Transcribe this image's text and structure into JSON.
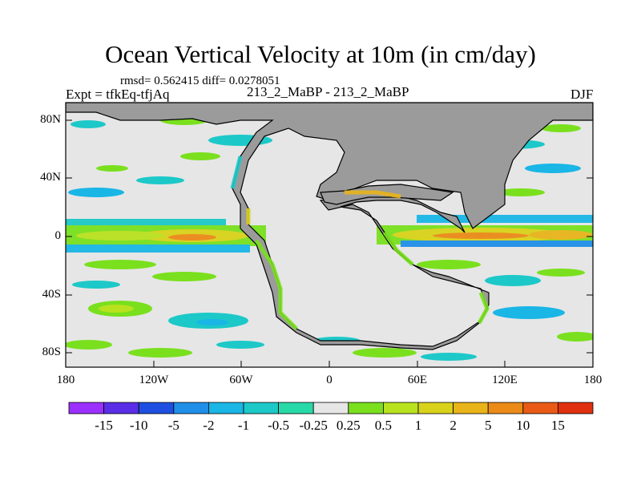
{
  "title": "Ocean Vertical Velocity at 10m (in cm/day)",
  "stats_text": "rmsd= 0.562415 diff= 0.0278051",
  "experiment_text": "Expt = tfkEq-tfjAq",
  "subtitle": "213_2_MaBP - 213_2_MaBP",
  "season": "DJF",
  "colors": {
    "land": "#9b9b9b",
    "ocean_neutral": "#e6e6e6",
    "coastline": "#000000"
  },
  "chart_data": {
    "type": "heatmap",
    "projection": "cylindrical-equidistant",
    "x_axis": {
      "range": [
        -180,
        180
      ],
      "ticks": [
        "180",
        "120W",
        "60W",
        "0",
        "60E",
        "120E",
        "180"
      ]
    },
    "y_axis": {
      "range": [
        -90,
        90
      ],
      "ticks": [
        "80N",
        "40N",
        "0",
        "40S",
        "80S"
      ]
    },
    "colorbar": {
      "levels": [
        "-15",
        "-10",
        "-5",
        "-2",
        "-1",
        "-0.5",
        "-0.25",
        "0.25",
        "0.5",
        "1",
        "2",
        "5",
        "10",
        "15"
      ],
      "colors": [
        "#9b30ff",
        "#5a2ee6",
        "#1f4fe0",
        "#1f8fe8",
        "#19b6e6",
        "#1dc8c8",
        "#28d9a8",
        "#e6e6e6",
        "#7ae01e",
        "#b9e21e",
        "#d9d21a",
        "#e9b41a",
        "#ec8a18",
        "#e85a16",
        "#e0300f"
      ]
    },
    "features": [
      {
        "name": "equatorial upwelling band west basin",
        "lon": [
          -180,
          -35
        ],
        "lat": [
          -6,
          8
        ],
        "level": "0.5 to 10"
      },
      {
        "name": "equatorial upwelling band east basin",
        "lon": [
          20,
          180
        ],
        "lat": [
          -6,
          6
        ],
        "level": "0.5 to 10"
      },
      {
        "name": "off-equatorial downwelling bands",
        "lon": [
          -180,
          180
        ],
        "lat": [
          -14,
          14
        ],
        "level": "-2 to -0.25"
      },
      {
        "name": "coastal upwelling along continental margins",
        "level": "0.5 to 2"
      }
    ]
  }
}
